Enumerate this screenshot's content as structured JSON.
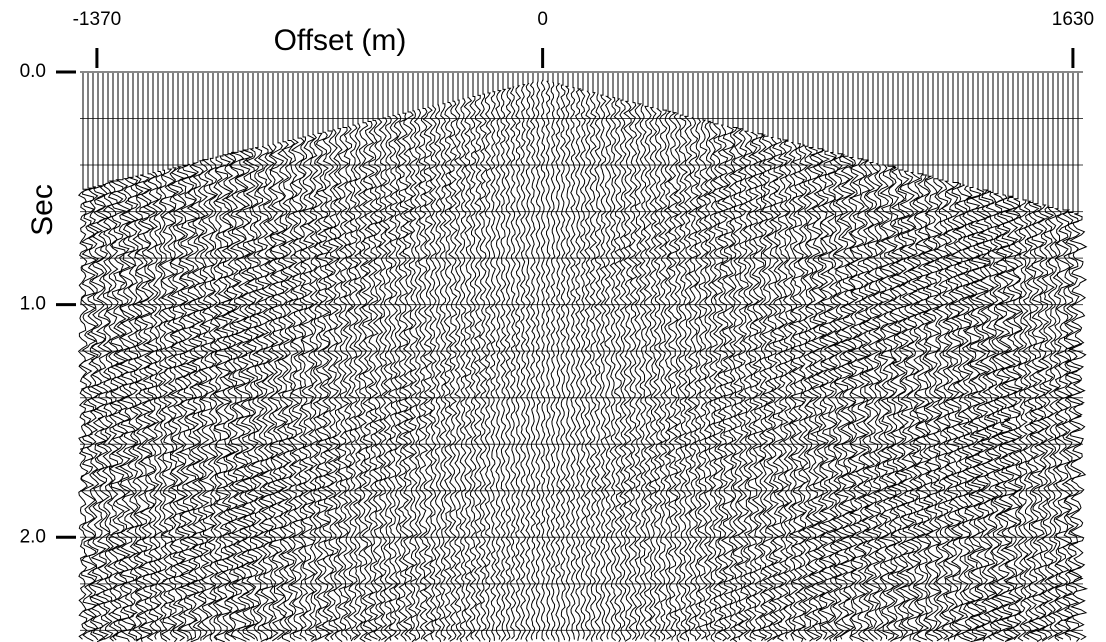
{
  "chart_data": {
    "type": "seismic",
    "x_label": "Offset (m)",
    "y_label": "Sec",
    "xlim": [
      -1422,
      1661
    ],
    "xticks": [
      -1370,
      0,
      1630
    ],
    "ylim": [
      0,
      2.45
    ],
    "y_inverted": true,
    "yticks": [
      {
        "value": 0,
        "label": "0.0"
      },
      {
        "value": 1,
        "label": "1.0"
      },
      {
        "value": 2,
        "label": "2.0"
      }
    ]
  }
}
